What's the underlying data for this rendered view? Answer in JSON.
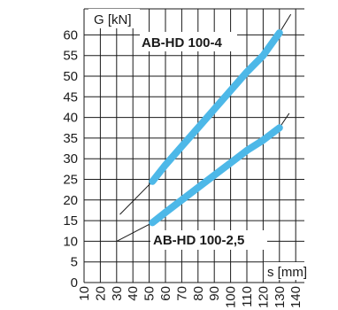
{
  "chart_data": {
    "type": "line",
    "ylabel": "G [kN]",
    "xlabel": "s [mm]",
    "xlim": [
      10,
      140
    ],
    "ylim": [
      0,
      60
    ],
    "x_ticks": [
      "10",
      "20",
      "30",
      "40",
      "50",
      "60",
      "70",
      "80",
      "90",
      "100",
      "110",
      "120",
      "130",
      "140"
    ],
    "y_ticks": [
      "0",
      "5",
      "10",
      "15",
      "20",
      "25",
      "30",
      "35",
      "40",
      "45",
      "50",
      "55",
      "60"
    ],
    "grid": true,
    "colors": {
      "series": "#4db8e8",
      "guide": "#1a1a1a",
      "grid": "#1a1a1a"
    },
    "series": [
      {
        "name": "AB-HD 100-4",
        "x": [
          52,
          60,
          70,
          80,
          90,
          100,
          110,
          120,
          130
        ],
        "y": [
          24.5,
          28.5,
          33,
          37.5,
          42,
          46.5,
          51,
          55,
          60.5
        ]
      },
      {
        "name": "AB-HD 100-2,5",
        "x": [
          52,
          60,
          70,
          80,
          90,
          100,
          110,
          120,
          130
        ],
        "y": [
          14.5,
          17,
          20,
          23,
          26,
          29,
          32,
          34.5,
          37.5
        ]
      }
    ],
    "guides": [
      {
        "x": [
          32,
          52
        ],
        "y": [
          16.5,
          24.5
        ]
      },
      {
        "x": [
          130,
          137
        ],
        "y": [
          60.5,
          65
        ]
      },
      {
        "x": [
          30,
          52
        ],
        "y": [
          10,
          14.5
        ]
      },
      {
        "x": [
          130,
          136
        ],
        "y": [
          37.5,
          41
        ]
      }
    ]
  }
}
